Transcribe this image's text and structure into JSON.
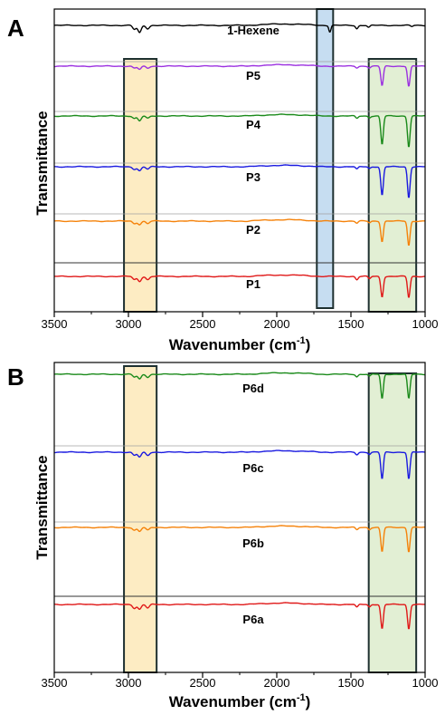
{
  "chart_data": [
    {
      "type": "line",
      "panel_label": "A",
      "xlabel": "Wavenumber (cm",
      "xlabel_sup": "-1",
      "xlabel_close": ")",
      "ylabel": "Transmittance",
      "xlim": [
        3500,
        1000
      ],
      "xticks": [
        3500,
        3000,
        2500,
        2000,
        1500,
        1000
      ],
      "grid": false,
      "highlight_regions": [
        {
          "from": 3030,
          "to": 2810,
          "color": "#fde9b8"
        },
        {
          "from": 1730,
          "to": 1620,
          "color": "#bcd7ee"
        },
        {
          "from": 1380,
          "to": 1060,
          "color": "#ddeccd"
        }
      ],
      "series": [
        {
          "name": "1-Hexene",
          "color": "#000000",
          "features": [
            [
              2960,
              0.5
            ],
            [
              2925,
              0.9
            ],
            [
              2870,
              0.4
            ],
            [
              1642,
              0.8
            ],
            [
              1460,
              0.4
            ],
            [
              1380,
              0.25
            ],
            [
              1090,
              0.15
            ]
          ]
        },
        {
          "name": "P5",
          "color": "#9b30e0",
          "features": [
            [
              2960,
              0.25
            ],
            [
              2925,
              0.4
            ],
            [
              2870,
              0.25
            ],
            [
              1460,
              0.2
            ],
            [
              1375,
              0.2
            ],
            [
              1290,
              2.4
            ],
            [
              1110,
              2.5
            ]
          ]
        },
        {
          "name": "P4",
          "color": "#1a8a1a",
          "features": [
            [
              2960,
              0.3
            ],
            [
              2925,
              0.6
            ],
            [
              2870,
              0.3
            ],
            [
              1460,
              0.3
            ],
            [
              1375,
              0.2
            ],
            [
              1290,
              3.5
            ],
            [
              1110,
              3.8
            ]
          ]
        },
        {
          "name": "P3",
          "color": "#1a1ae0",
          "features": [
            [
              2960,
              0.3
            ],
            [
              2925,
              0.5
            ],
            [
              2870,
              0.3
            ],
            [
              1460,
              0.3
            ],
            [
              1375,
              0.2
            ],
            [
              1290,
              3.5
            ],
            [
              1110,
              3.8
            ]
          ]
        },
        {
          "name": "P2",
          "color": "#f5820a",
          "features": [
            [
              2960,
              0.3
            ],
            [
              2925,
              0.4
            ],
            [
              2870,
              0.3
            ],
            [
              1460,
              0.25
            ],
            [
              1375,
              0.2
            ],
            [
              1290,
              2.5
            ],
            [
              1110,
              3.0
            ]
          ]
        },
        {
          "name": "P1",
          "color": "#e01818",
          "features": [
            [
              2960,
              0.4
            ],
            [
              2925,
              0.6
            ],
            [
              2870,
              0.4
            ],
            [
              1460,
              0.4
            ],
            [
              1375,
              0.3
            ],
            [
              1290,
              2.5
            ],
            [
              1110,
              2.6
            ]
          ]
        }
      ]
    },
    {
      "type": "line",
      "panel_label": "B",
      "xlabel": "Wavenumber (cm",
      "xlabel_sup": "-1",
      "xlabel_close": ")",
      "ylabel": "Transmittance",
      "xlim": [
        3500,
        1000
      ],
      "xticks": [
        3500,
        3000,
        2500,
        2000,
        1500,
        1000
      ],
      "grid": false,
      "highlight_regions": [
        {
          "from": 3030,
          "to": 2810,
          "color": "#fde9b8"
        },
        {
          "from": 1380,
          "to": 1060,
          "color": "#ddeccd"
        }
      ],
      "series": [
        {
          "name": "P6d",
          "color": "#1a8a1a",
          "features": [
            [
              2960,
              0.35
            ],
            [
              2925,
              0.6
            ],
            [
              2870,
              0.35
            ],
            [
              1460,
              0.3
            ],
            [
              1375,
              0.25
            ],
            [
              1290,
              3.0
            ],
            [
              1110,
              3.0
            ]
          ]
        },
        {
          "name": "P6c",
          "color": "#1a1ae0",
          "features": [
            [
              2960,
              0.4
            ],
            [
              2925,
              0.6
            ],
            [
              2870,
              0.4
            ],
            [
              1460,
              0.3
            ],
            [
              1375,
              0.25
            ],
            [
              1290,
              3.3
            ],
            [
              1110,
              3.3
            ]
          ]
        },
        {
          "name": "P6b",
          "color": "#f5820a",
          "features": [
            [
              2960,
              0.35
            ],
            [
              2925,
              0.5
            ],
            [
              2870,
              0.35
            ],
            [
              1460,
              0.3
            ],
            [
              1375,
              0.25
            ],
            [
              1290,
              3.0
            ],
            [
              1110,
              3.0
            ]
          ]
        },
        {
          "name": "P6a",
          "color": "#e01818",
          "features": [
            [
              2960,
              0.45
            ],
            [
              2925,
              0.6
            ],
            [
              2870,
              0.45
            ],
            [
              1460,
              0.35
            ],
            [
              1375,
              0.3
            ],
            [
              1290,
              3.0
            ],
            [
              1110,
              3.0
            ]
          ]
        }
      ]
    }
  ]
}
